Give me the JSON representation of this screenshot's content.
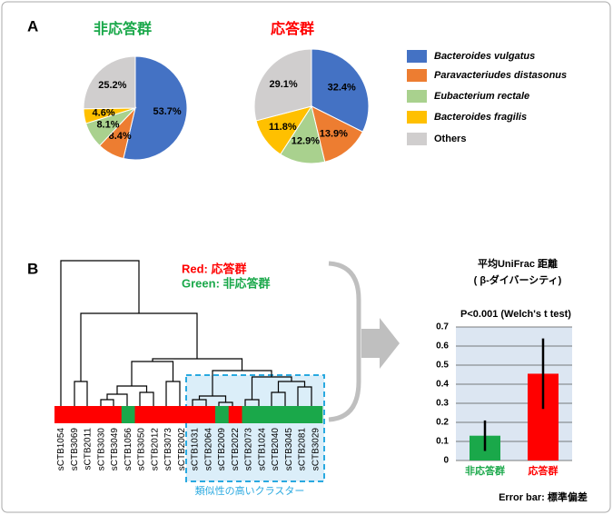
{
  "panels": [
    "A",
    "B"
  ],
  "legend": {
    "entries": [
      {
        "name": "Bacteroides vulgatus",
        "color": "#4472c4",
        "italic": true
      },
      {
        "name": "Paravacteriudes distasonus",
        "color": "#ed7d31",
        "italic": true
      },
      {
        "name": "Eubacterium rectale",
        "color": "#a9d18e",
        "italic": true
      },
      {
        "name": "Bacteroides fragilis",
        "color": "#ffc000",
        "italic": true
      },
      {
        "name": "Others",
        "color": "#d0cece",
        "italic": false
      }
    ]
  },
  "chart_data": [
    {
      "type": "pie",
      "title": "非応答群",
      "title_color": "#1aa84a",
      "values": [
        53.7,
        8.4,
        8.1,
        4.6,
        25.2
      ],
      "value_labels": [
        "53.7%",
        "8.4%",
        "8.1%",
        "4.6%",
        "25.2%"
      ]
    },
    {
      "type": "pie",
      "title": "応答群",
      "title_color": "#ff0000",
      "values": [
        32.4,
        13.9,
        12.9,
        11.8,
        29.1
      ],
      "value_labels": [
        "32.4%",
        "13.9%",
        "12.9%",
        "11.8%",
        "29.1%"
      ]
    },
    {
      "type": "dendrogram",
      "legend_lines": [
        {
          "text": "Red: 応答群",
          "color": "#ff0000"
        },
        {
          "text": "Green: 非応答群",
          "color": "#1aa84a"
        }
      ],
      "leaves": [
        "sCTB1054",
        "sCTB3069",
        "sCTB2011",
        "sCTB3030",
        "sCTB3049",
        "sCTB1056",
        "sCTB3050",
        "sCTB2012",
        "sCTB3073",
        "sCTB2002",
        "sCTB1031",
        "sCTB2064",
        "sCTB2009",
        "sCTB2022",
        "sCTB2073",
        "sCTB1024",
        "sCTB2040",
        "sCTB3045",
        "sCTB2081",
        "sCTB3029"
      ],
      "leaf_colors": [
        "#ff0000",
        "#ff0000",
        "#ff0000",
        "#ff0000",
        "#ff0000",
        "#1aa84a",
        "#ff0000",
        "#ff0000",
        "#ff0000",
        "#ff0000",
        "#ff0000",
        "#ff0000",
        "#1aa84a",
        "#ff0000",
        "#1aa84a",
        "#1aa84a",
        "#1aa84a",
        "#1aa84a",
        "#1aa84a",
        "#1aa84a"
      ],
      "cluster_label": "類似性の高いクラスター"
    },
    {
      "type": "bar",
      "title": "平均UniFrac 距離",
      "subtitle": "( β-ダイバーシティ)",
      "annotation": "P<0.001 (Welch's t test)",
      "categories": [
        "非応答群",
        "応答群"
      ],
      "category_colors": [
        "#1aa84a",
        "#ff0000"
      ],
      "values": [
        0.13,
        0.455
      ],
      "errors": [
        0.08,
        0.185
      ],
      "colors": [
        "#1aa84a",
        "#ff0000"
      ],
      "ylim": [
        0,
        0.7
      ],
      "yticks": [
        0,
        0.1,
        0.2,
        0.3,
        0.4,
        0.5,
        0.6,
        0.7
      ],
      "grid": true,
      "note": "Error bar: 標準偏差"
    }
  ]
}
